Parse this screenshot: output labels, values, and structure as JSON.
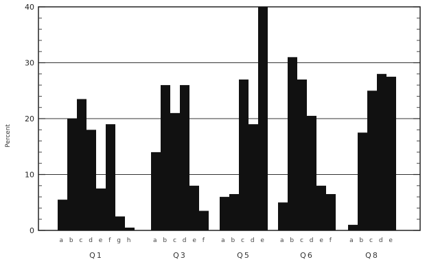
{
  "chart_data": {
    "type": "bar",
    "title": "",
    "xlabel": "",
    "ylabel": "Percent",
    "ylim": [
      0,
      40
    ],
    "yticks": [
      0,
      10,
      20,
      30,
      40
    ],
    "grid_y": [
      10,
      20,
      30
    ],
    "bar_color": "#111111",
    "groups": [
      {
        "name": "Q1",
        "categories": [
          "a",
          "b",
          "c",
          "d",
          "e",
          "f",
          "g",
          "h"
        ],
        "values": [
          5.5,
          20,
          23.5,
          18,
          7.5,
          19,
          2.5,
          0.5
        ]
      },
      {
        "name": "Q3",
        "categories": [
          "a",
          "b",
          "c",
          "d",
          "e",
          "f"
        ],
        "values": [
          14,
          26,
          21,
          26,
          8,
          3.5
        ]
      },
      {
        "name": "Q5",
        "categories": [
          "a",
          "b",
          "c",
          "d",
          "e"
        ],
        "values": [
          6,
          6.5,
          27,
          19,
          40
        ]
      },
      {
        "name": "Q6",
        "categories": [
          "a",
          "b",
          "c",
          "d",
          "e",
          "f"
        ],
        "values": [
          5,
          31,
          27,
          20.5,
          8,
          6.5
        ]
      },
      {
        "name": "Q8",
        "categories": [
          "a",
          "b",
          "c",
          "d",
          "e"
        ],
        "values": [
          1,
          17.5,
          25,
          28,
          27.5
        ]
      }
    ]
  }
}
